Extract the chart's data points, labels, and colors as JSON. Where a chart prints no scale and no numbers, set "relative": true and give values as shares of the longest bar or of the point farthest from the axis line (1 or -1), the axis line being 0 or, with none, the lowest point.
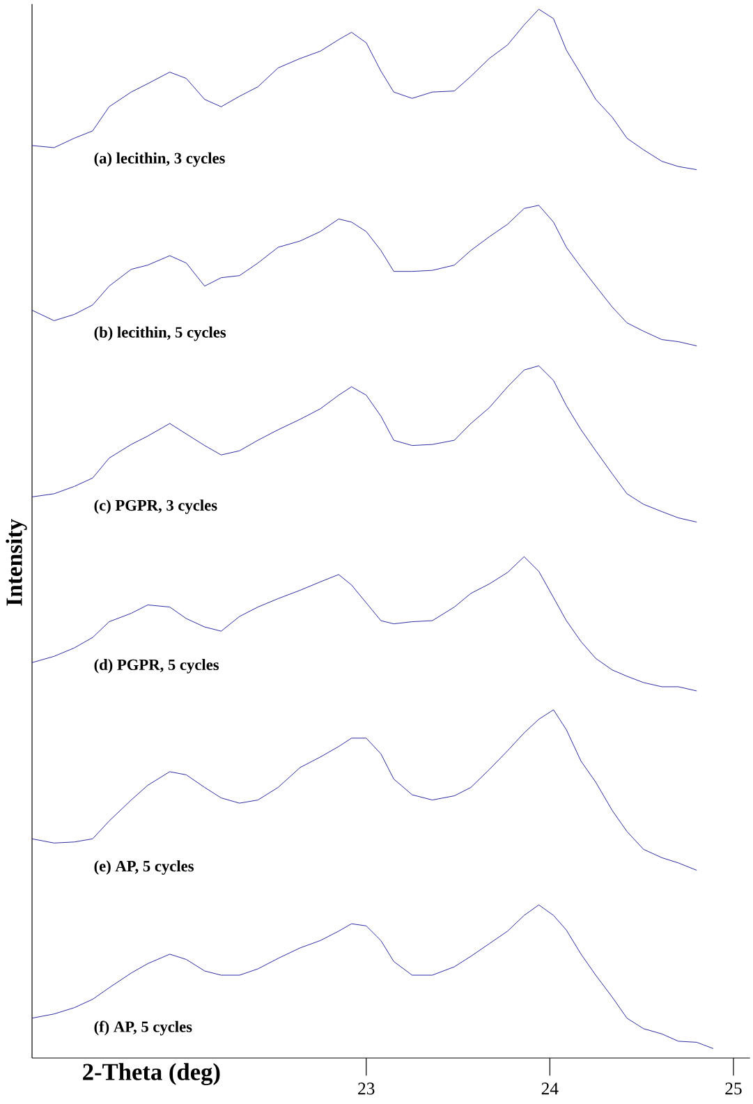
{
  "chart_data": {
    "type": "line",
    "relative": true,
    "xlabel": "2-Theta (deg)",
    "ylabel": "Intensity",
    "xlim": [
      21.18,
      25.09
    ],
    "xticks": [
      23,
      24,
      25
    ],
    "x": [
      21.18,
      21.3,
      21.41,
      21.51,
      21.6,
      21.72,
      21.81,
      21.93,
      22.02,
      22.12,
      22.21,
      22.31,
      22.41,
      22.52,
      22.64,
      22.75,
      22.85,
      22.92,
      23.0,
      23.08,
      23.15,
      23.25,
      23.36,
      23.48,
      23.57,
      23.67,
      23.77,
      23.86,
      23.94,
      24.02,
      24.09,
      24.17,
      24.25,
      24.34,
      24.42,
      24.51,
      24.61,
      24.7,
      24.8
    ],
    "series": [
      {
        "name": "(a) lecithin,  3 cycles",
        "color": "#1c1c9c",
        "values": [
          0.87,
          0.868,
          0.877,
          0.884,
          0.907,
          0.921,
          0.929,
          0.94,
          0.934,
          0.914,
          0.907,
          0.917,
          0.926,
          0.944,
          0.953,
          0.96,
          0.971,
          0.978,
          0.968,
          0.941,
          0.921,
          0.915,
          0.921,
          0.922,
          0.936,
          0.953,
          0.966,
          0.985,
          1.0,
          0.991,
          0.961,
          0.938,
          0.914,
          0.897,
          0.877,
          0.866,
          0.855,
          0.85,
          0.847
        ]
      },
      {
        "name": "(b) lecithin,  5 cycles",
        "color": "#1c1c9c",
        "values": [
          0.713,
          0.703,
          0.709,
          0.718,
          0.736,
          0.752,
          0.756,
          0.765,
          0.758,
          0.736,
          0.744,
          0.746,
          0.758,
          0.773,
          0.779,
          0.788,
          0.8,
          0.797,
          0.788,
          0.77,
          0.75,
          0.75,
          0.751,
          0.756,
          0.77,
          0.783,
          0.795,
          0.81,
          0.813,
          0.797,
          0.773,
          0.754,
          0.736,
          0.716,
          0.701,
          0.693,
          0.685,
          0.683,
          0.679
        ]
      },
      {
        "name": "(c) PGPR, 3 cycles",
        "color": "#1c1c9c",
        "values": [
          0.535,
          0.538,
          0.545,
          0.553,
          0.572,
          0.585,
          0.593,
          0.605,
          0.595,
          0.584,
          0.575,
          0.579,
          0.589,
          0.599,
          0.609,
          0.619,
          0.632,
          0.64,
          0.632,
          0.612,
          0.589,
          0.584,
          0.585,
          0.589,
          0.605,
          0.62,
          0.64,
          0.656,
          0.66,
          0.646,
          0.622,
          0.599,
          0.579,
          0.557,
          0.538,
          0.528,
          0.521,
          0.515,
          0.511
        ]
      },
      {
        "name": "(d) PGPR, 5 cycles",
        "color": "#1c1c9c",
        "values": [
          0.377,
          0.383,
          0.391,
          0.401,
          0.416,
          0.424,
          0.432,
          0.43,
          0.419,
          0.411,
          0.407,
          0.421,
          0.43,
          0.438,
          0.446,
          0.454,
          0.461,
          0.451,
          0.434,
          0.417,
          0.414,
          0.416,
          0.417,
          0.43,
          0.443,
          0.452,
          0.463,
          0.478,
          0.464,
          0.439,
          0.417,
          0.397,
          0.381,
          0.37,
          0.364,
          0.358,
          0.354,
          0.354,
          0.35
        ]
      },
      {
        "name": "(e) AP, 5 cycles",
        "color": "#1c1c9c",
        "values": [
          0.209,
          0.205,
          0.206,
          0.209,
          0.226,
          0.246,
          0.26,
          0.273,
          0.27,
          0.258,
          0.248,
          0.243,
          0.246,
          0.258,
          0.277,
          0.287,
          0.297,
          0.305,
          0.305,
          0.29,
          0.266,
          0.251,
          0.246,
          0.25,
          0.258,
          0.275,
          0.293,
          0.31,
          0.323,
          0.332,
          0.313,
          0.283,
          0.263,
          0.236,
          0.216,
          0.199,
          0.191,
          0.186,
          0.179
        ]
      },
      {
        "name": "(f) AP, 5 cycles",
        "color": "#1c1c9c",
        "x": [
          21.18,
          21.3,
          21.41,
          21.51,
          21.6,
          21.72,
          21.81,
          21.93,
          22.02,
          22.12,
          22.21,
          22.31,
          22.41,
          22.52,
          22.64,
          22.75,
          22.85,
          22.92,
          23.0,
          23.08,
          23.15,
          23.25,
          23.36,
          23.48,
          23.57,
          23.67,
          23.77,
          23.86,
          23.94,
          24.02,
          24.09,
          24.17,
          24.25,
          24.34,
          24.42,
          24.51,
          24.61,
          24.7,
          24.8,
          24.89
        ],
        "values": [
          0.038,
          0.042,
          0.048,
          0.056,
          0.067,
          0.081,
          0.09,
          0.099,
          0.094,
          0.083,
          0.079,
          0.079,
          0.085,
          0.095,
          0.105,
          0.112,
          0.121,
          0.128,
          0.126,
          0.112,
          0.092,
          0.079,
          0.079,
          0.087,
          0.097,
          0.109,
          0.121,
          0.136,
          0.146,
          0.136,
          0.122,
          0.099,
          0.079,
          0.058,
          0.038,
          0.028,
          0.023,
          0.016,
          0.015,
          0.009
        ]
      }
    ]
  }
}
